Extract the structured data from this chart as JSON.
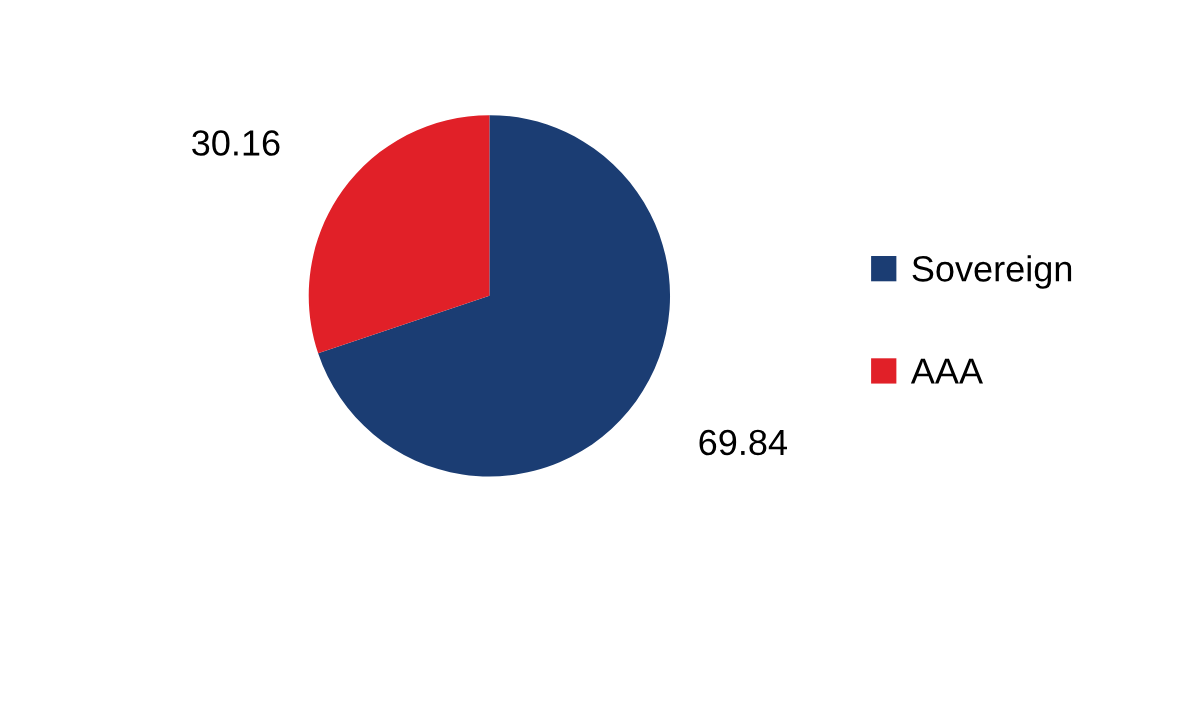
{
  "chart_data": {
    "type": "pie",
    "categories": [
      "Sovereign",
      "AAA"
    ],
    "values": [
      69.84,
      30.16
    ],
    "colors": [
      "#1b3d73",
      "#e12028"
    ],
    "data_labels": true,
    "legend": "right"
  }
}
